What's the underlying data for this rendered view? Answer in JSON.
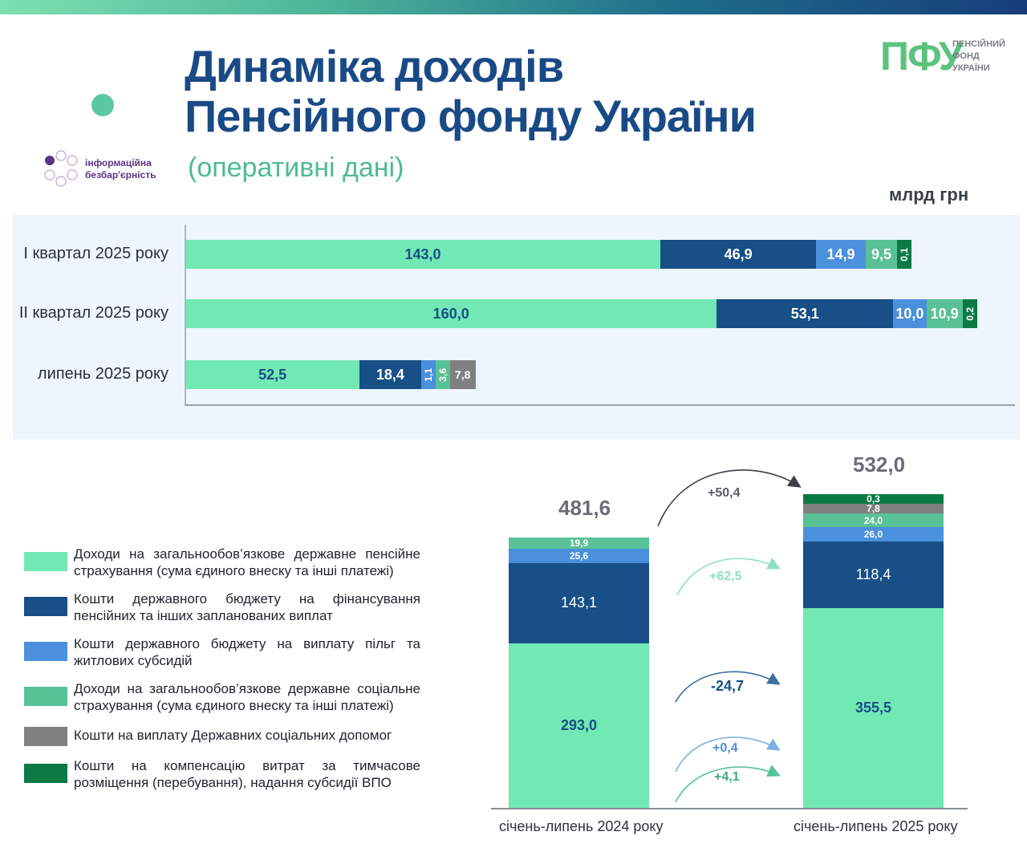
{
  "header": {
    "title_line1": "Динаміка доходів",
    "title_line2": "Пенсійного фонду України",
    "subtitle": "(оперативні дані)",
    "unit": "млрд грн",
    "badge_line1": "інформаційна",
    "badge_line2": "безбар'єрність",
    "logo_mark": "ПФУ",
    "logo_line1": "ПЕНСІЙНИЙ",
    "logo_line2": "ФОНД",
    "logo_line3": "УКРАЇНИ"
  },
  "colors": {
    "pension_insurance": "#72e8b4",
    "state_budget_payments": "#174f86",
    "state_budget_subsidies": "#4a90dc",
    "social_insurance": "#58c196",
    "state_social_aid": "#808080",
    "idp_compensation": "#0b7a45"
  },
  "chart_data": [
    {
      "type": "bar",
      "orientation": "horizontal",
      "stacked": true,
      "title": "",
      "unit": "млрд грн",
      "categories": [
        "I квартал 2025 року",
        "II квартал 2025 року",
        "липень 2025 року"
      ],
      "series": [
        {
          "name": "pension_insurance",
          "values": [
            143.0,
            160.0,
            52.5
          ],
          "labels": [
            "143,0",
            "160,0",
            "52,5"
          ]
        },
        {
          "name": "state_budget_payments",
          "values": [
            46.9,
            53.1,
            18.4
          ],
          "labels": [
            "46,9",
            "53,1",
            "18,4"
          ]
        },
        {
          "name": "state_budget_subsidies",
          "values": [
            14.9,
            10.0,
            1.1
          ],
          "labels": [
            "14,9",
            "10,0",
            "1,1"
          ]
        },
        {
          "name": "social_insurance",
          "values": [
            9.5,
            10.9,
            3.6
          ],
          "labels": [
            "9,5",
            "10,9",
            "3,6"
          ]
        },
        {
          "name": "state_social_aid",
          "values": [
            0,
            0,
            7.8
          ],
          "labels": [
            "",
            "",
            "7,8"
          ]
        },
        {
          "name": "idp_compensation",
          "values": [
            0.1,
            0.2,
            0
          ],
          "labels": [
            "0,1",
            "0,2",
            ""
          ]
        }
      ]
    },
    {
      "type": "bar",
      "orientation": "vertical",
      "stacked": true,
      "categories": [
        "січень-липень 2024 року",
        "січень-липень 2025 року"
      ],
      "totals": [
        "481,6",
        "532,0"
      ],
      "series": [
        {
          "name": "pension_insurance",
          "values": [
            293.0,
            355.5
          ],
          "labels": [
            "293,0",
            "355,5"
          ]
        },
        {
          "name": "state_budget_payments",
          "values": [
            143.1,
            118.4
          ],
          "labels": [
            "143,1",
            "118,4"
          ]
        },
        {
          "name": "state_budget_subsidies",
          "values": [
            25.6,
            26.0
          ],
          "labels": [
            "25,6",
            "26,0"
          ]
        },
        {
          "name": "social_insurance",
          "values": [
            19.9,
            24.0
          ],
          "labels": [
            "19,9",
            "24,0"
          ]
        },
        {
          "name": "state_social_aid",
          "values": [
            0,
            7.8
          ],
          "labels": [
            "",
            "7,8"
          ]
        },
        {
          "name": "idp_compensation",
          "values": [
            0,
            0.3
          ],
          "labels": [
            "",
            "0,3"
          ]
        }
      ],
      "changes": {
        "total": "+50,4",
        "pension_insurance": "+62,5",
        "state_budget_payments": "-24,7",
        "state_budget_subsidies": "+0,4",
        "social_insurance": "+4,1"
      }
    }
  ],
  "legend": [
    {
      "key": "pension_insurance",
      "label": "Доходи на загальнообов’язкове державне пенсійне страхування (сума єдиного внеску та інші платежі)"
    },
    {
      "key": "state_budget_payments",
      "label": "Кошти державного бюджету на фінансування пенсійних та інших запланованих виплат"
    },
    {
      "key": "state_budget_subsidies",
      "label": "Кошти державного бюджету на виплату пільг та житлових субсидій"
    },
    {
      "key": "social_insurance",
      "label": "Доходи на загальнообов’язкове державне соціальне страхування (сума єдиного внеску та інші платежі)"
    },
    {
      "key": "state_social_aid",
      "label": "Кошти на виплату Державних соціальних допомог"
    },
    {
      "key": "idp_compensation",
      "label": "Кошти на компенсацію витрат за тимчасове розміщення (перебування), надання субсидії ВПО"
    }
  ]
}
